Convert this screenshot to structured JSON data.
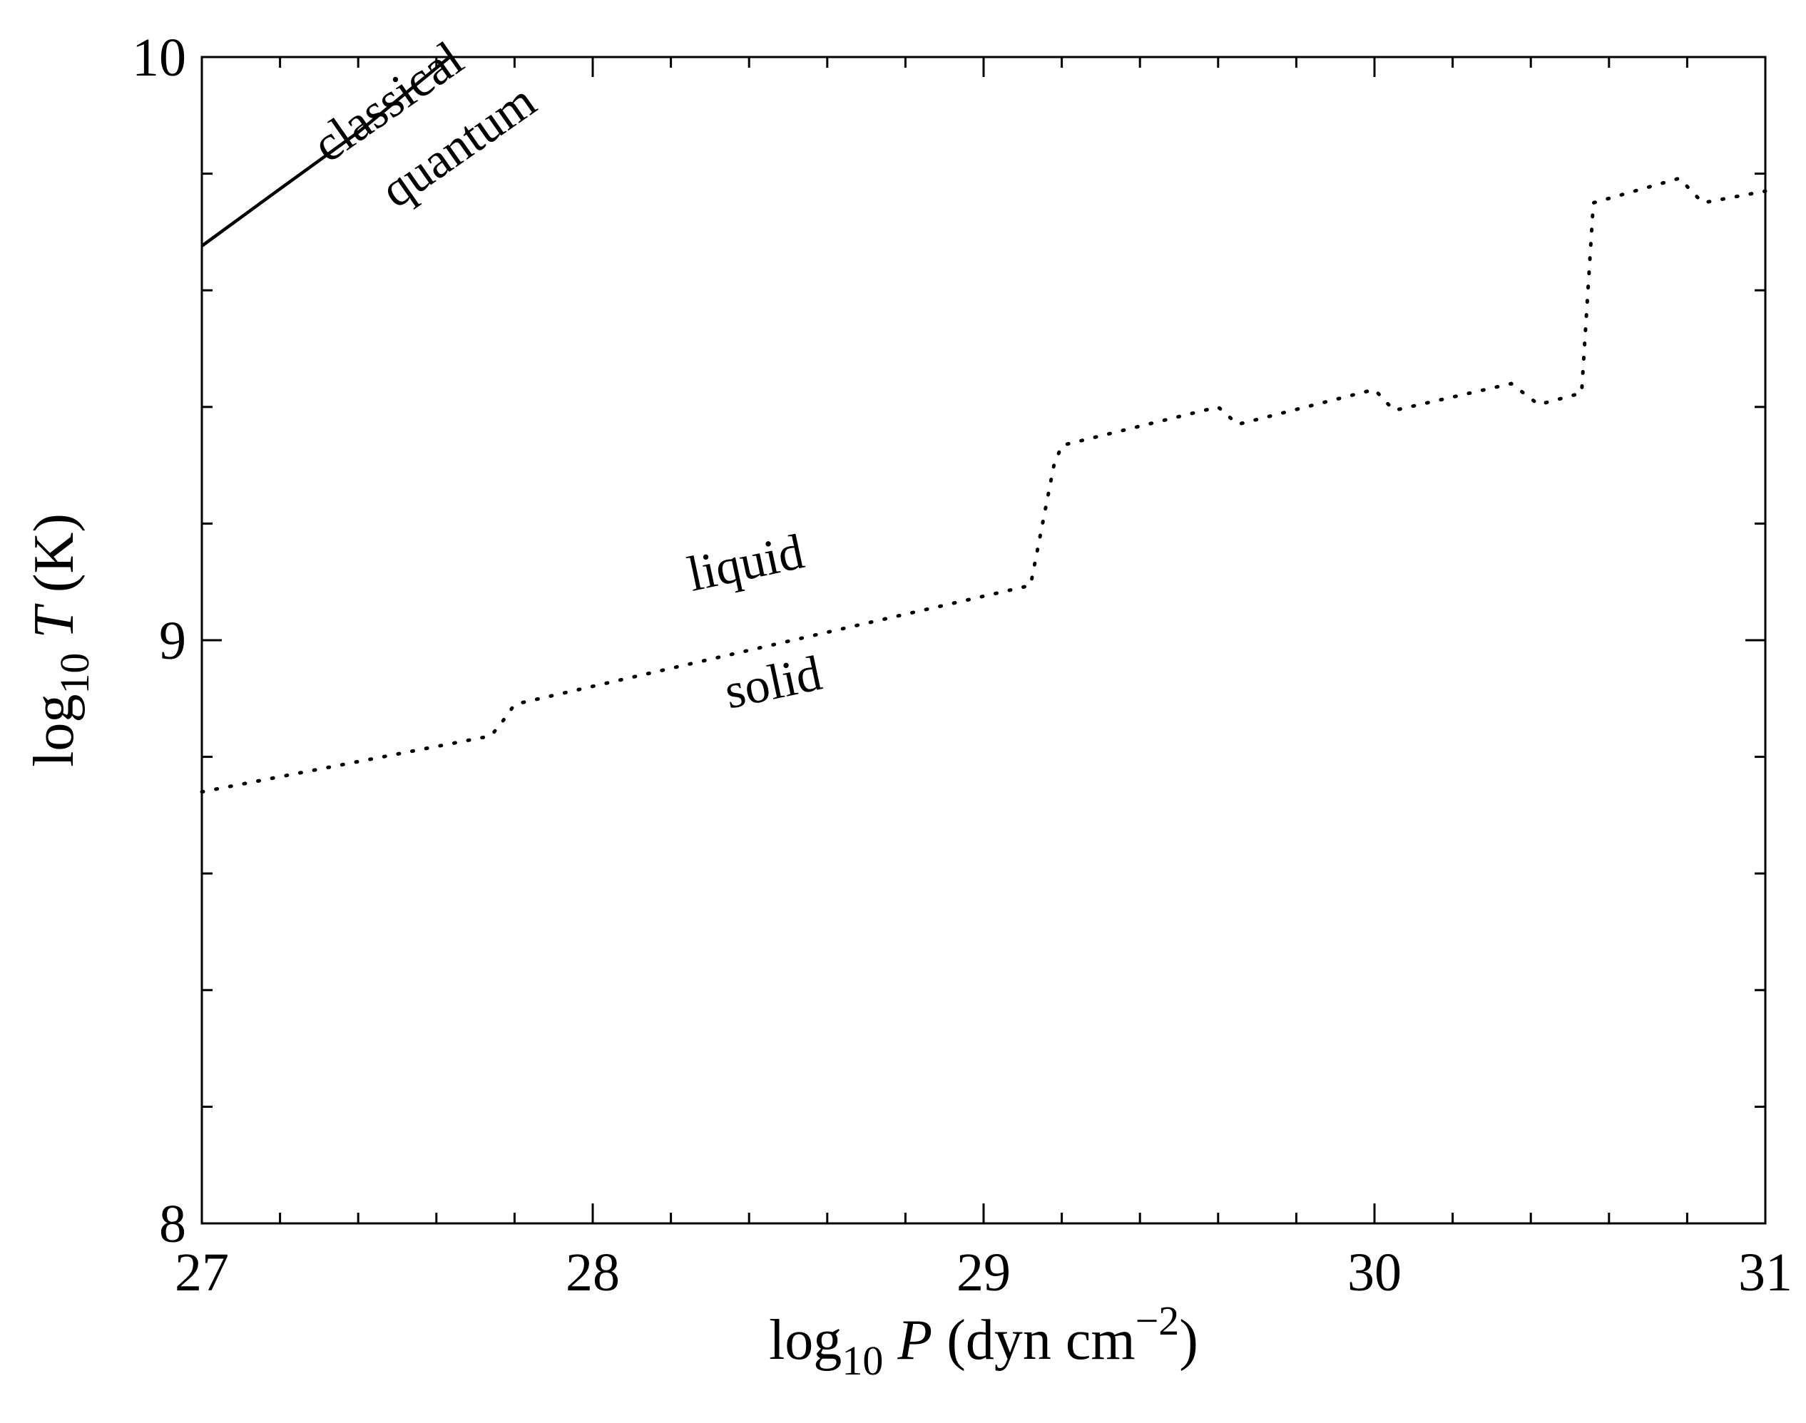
{
  "chart_data": {
    "type": "line",
    "xlabel": {
      "prefix": "log",
      "sub": "10",
      "var": "P",
      "unit_open": " (dyn cm",
      "sup": "−2",
      "unit_close": ")"
    },
    "ylabel": {
      "prefix": "log",
      "sub": "10",
      "var": "T",
      "unit": " (K)"
    },
    "xlim": [
      27,
      31
    ],
    "ylim": [
      8,
      10
    ],
    "xticks": {
      "major": [
        "27",
        "28",
        "29",
        "30",
        "31"
      ],
      "minor_per_major": 5
    },
    "yticks": {
      "major": [
        "8",
        "9",
        "10"
      ],
      "minor_per_major": 5
    },
    "grid": false,
    "series": [
      {
        "style": "solid",
        "x": [
          27.0,
          27.2,
          27.4,
          27.634
        ],
        "y": [
          9.676,
          9.774,
          9.871,
          10.0
        ]
      },
      {
        "style": "dotted",
        "x": [
          27.0,
          27.74,
          27.78,
          27.8,
          29.12,
          29.18,
          29.2,
          29.6,
          29.65,
          30.0,
          30.05,
          30.35,
          30.42,
          30.53,
          30.56,
          30.78,
          30.84,
          31.0
        ],
        "y": [
          8.74,
          8.836,
          8.87,
          8.89,
          9.094,
          9.3,
          9.334,
          9.4,
          9.37,
          9.43,
          9.394,
          9.44,
          9.404,
          9.424,
          9.75,
          9.792,
          9.75,
          9.77
        ]
      }
    ],
    "annotations": [
      {
        "text": "classical",
        "x": 27.5,
        "y": 9.9,
        "angle": -35
      },
      {
        "text": "quantum",
        "x": 27.68,
        "y": 9.825,
        "angle": -35
      },
      {
        "text": "liquid",
        "x": 28.4,
        "y": 9.105,
        "angle": -12
      },
      {
        "text": "solid",
        "x": 28.47,
        "y": 8.9,
        "angle": -12
      }
    ]
  }
}
